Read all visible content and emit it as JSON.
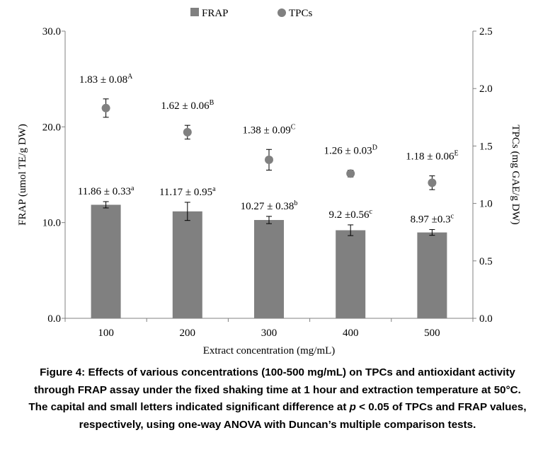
{
  "chart_data": {
    "type": "bar+scatter",
    "categories": [
      "100",
      "200",
      "300",
      "400",
      "500"
    ],
    "xlabel": "Extract concentration (mg/mL)",
    "ylabel_left": "FRAP (umol TE/g DW)",
    "ylabel_right": "TPCs (mg GAE/g DW)",
    "ylim_left": [
      0,
      30
    ],
    "ylim_right": [
      0,
      2.5
    ],
    "yticks_left": [
      "0.0",
      "10.0",
      "20.0",
      "30.0"
    ],
    "yticks_right": [
      "0.0",
      "0.5",
      "1.0",
      "1.5",
      "2.0",
      "2.5"
    ],
    "legend_position": "top-center",
    "grid": false,
    "series": [
      {
        "name": "FRAP",
        "kind": "bar",
        "axis": "left",
        "color": "#808080",
        "values": [
          11.86,
          11.17,
          10.27,
          9.2,
          8.97
        ],
        "errors": [
          0.33,
          0.95,
          0.38,
          0.56,
          0.3
        ],
        "labels": [
          {
            "text": "11.86 ± 0.33",
            "sup": "a"
          },
          {
            "text": "11.17 ± 0.95",
            "sup": "a"
          },
          {
            "text": "10.27 ± 0.38",
            "sup": "b"
          },
          {
            "text": "9.2 ±0.56",
            "sup": "c"
          },
          {
            "text": "8.97 ±0.3",
            "sup": "c"
          }
        ]
      },
      {
        "name": "TPCs",
        "kind": "scatter",
        "axis": "right",
        "color": "#808080",
        "values": [
          1.83,
          1.62,
          1.38,
          1.26,
          1.18
        ],
        "errors": [
          0.08,
          0.06,
          0.09,
          0.03,
          0.06
        ],
        "labels": [
          {
            "text": "1.83 ± 0.08",
            "sup": "A"
          },
          {
            "text": "1.62 ± 0.06",
            "sup": "B"
          },
          {
            "text": "1.38 ± 0.09",
            "sup": "C"
          },
          {
            "text": "1.26 ± 0.03",
            "sup": "D"
          },
          {
            "text": "1.18 ± 0.06",
            "sup": "E"
          }
        ]
      }
    ]
  },
  "caption": {
    "line1": "Figure 4: Effects of various concentrations (100-500 mg/mL) on TPCs and antioxidant activity",
    "line2": "through FRAP assay under the fixed shaking time at 1 hour and extraction temperature at 50°C.",
    "line3_pre": "The capital and small letters indicated significant difference at ",
    "line3_p": "p",
    "line3_post": " < 0.05 of TPCs and FRAP values,",
    "line4": "respectively, using one-way ANOVA with Duncan’s multiple comparison tests."
  }
}
